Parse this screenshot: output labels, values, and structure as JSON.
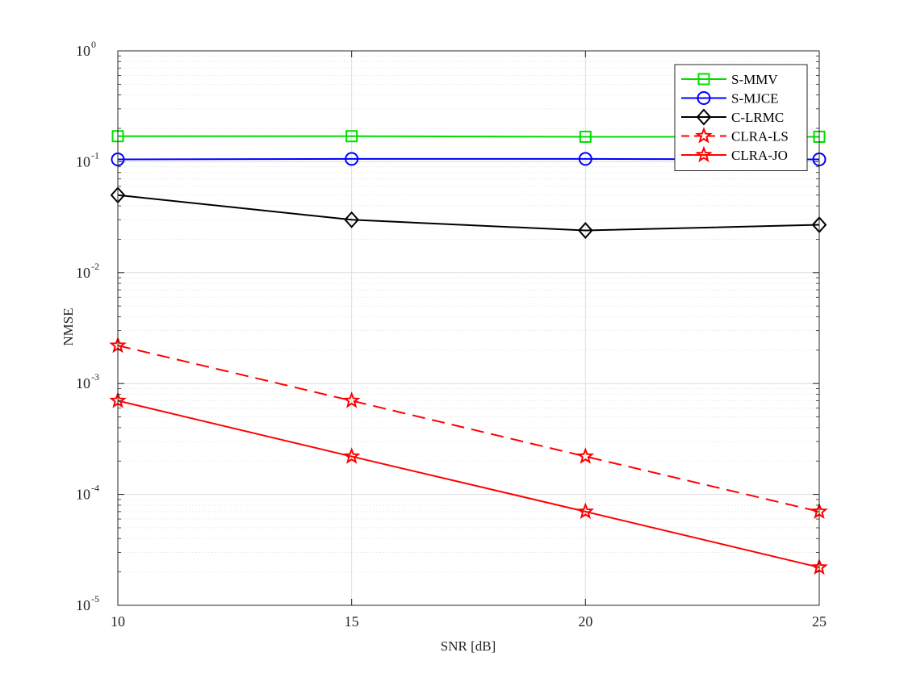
{
  "chart_data": {
    "type": "line",
    "xlabel": "SNR [dB]",
    "ylabel": "NMSE",
    "x": [
      10,
      15,
      20,
      25
    ],
    "xlim": [
      10,
      25
    ],
    "ylim": [
      1e-05,
      1
    ],
    "yscale": "log",
    "grid": true,
    "minor_grid": true,
    "legend_position": "top-right",
    "x_ticks": [
      "10",
      "15",
      "20",
      "25"
    ],
    "y_ticks": [
      {
        "base": "10",
        "exp": "-5"
      },
      {
        "base": "10",
        "exp": "-4"
      },
      {
        "base": "10",
        "exp": "-3"
      },
      {
        "base": "10",
        "exp": "-2"
      },
      {
        "base": "10",
        "exp": "-1"
      },
      {
        "base": "10",
        "exp": "0"
      }
    ],
    "series": [
      {
        "name": "S-MMV",
        "values": [
          0.17,
          0.17,
          0.168,
          0.168
        ],
        "color": "#00dd00",
        "marker": "square",
        "dash": "solid"
      },
      {
        "name": "S-MJCE",
        "values": [
          0.105,
          0.106,
          0.106,
          0.105
        ],
        "color": "#0000ff",
        "marker": "circle",
        "dash": "solid"
      },
      {
        "name": "C-LRMC",
        "values": [
          0.05,
          0.03,
          0.024,
          0.027
        ],
        "color": "#000000",
        "marker": "diamond",
        "dash": "solid"
      },
      {
        "name": "CLRA-LS",
        "values": [
          0.0022,
          0.0007,
          0.00022,
          7e-05
        ],
        "color": "#ff0000",
        "marker": "star",
        "dash": "dashed"
      },
      {
        "name": "CLRA-JO",
        "values": [
          0.0007,
          0.00022,
          7e-05,
          2.2e-05
        ],
        "color": "#ff0000",
        "marker": "star",
        "dash": "solid"
      }
    ]
  }
}
